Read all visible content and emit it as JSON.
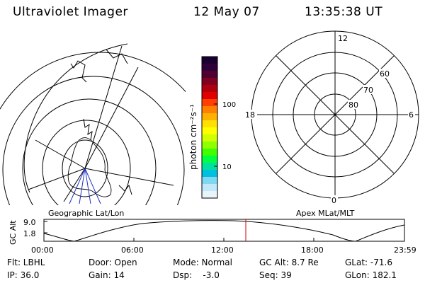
{
  "header": {
    "instrument": "Ultraviolet Imager",
    "date": "12 May 07",
    "time": "13:35:38 UT"
  },
  "panels": {
    "geo_label": "Geographic Lat/Lon",
    "apex_label": "Apex MLat/MLT"
  },
  "colorbar": {
    "label": "photon cm⁻²s⁻¹",
    "tick_100": "100",
    "tick_10": "10",
    "colors_top_to_bottom": [
      "#1a0030",
      "#30003a",
      "#500030",
      "#800020",
      "#b00010",
      "#e00000",
      "#ff4000",
      "#ff8000",
      "#ffb000",
      "#ffe000",
      "#ffff00",
      "#d0ff00",
      "#90ff00",
      "#40ff00",
      "#00ff40",
      "#00e0a0",
      "#00c0e0",
      "#80d8f0",
      "#c0e8f8",
      "#e8f4fa"
    ]
  },
  "polar_grid": {
    "mlt_12": "12",
    "mlt_18": "18",
    "mlt_6": "6",
    "mlt_0": "0",
    "lat_60": "60",
    "lat_70": "70",
    "lat_80": "80"
  },
  "altitude_plot": {
    "ylabel": "GC Alt",
    "ytick_top": "9.0",
    "ytick_bottom": "1.8",
    "xticks": [
      "00:00",
      "06:00",
      "12:00",
      "18:00",
      "23:59"
    ],
    "current_marker_color": "#d00000"
  },
  "info": {
    "filter": "Flt: LBHL",
    "door": "Door: Open",
    "mode": "Mode: Normal",
    "gc_alt": "GC Alt: 8.7 Re",
    "glat": "GLat: -71.6",
    "ip": "IP: 36.0",
    "gain": "Gain: 14",
    "dsp": "Dsp:    -3.0",
    "seq": "Seq: 39",
    "glon": "GLon: 182.1"
  }
}
